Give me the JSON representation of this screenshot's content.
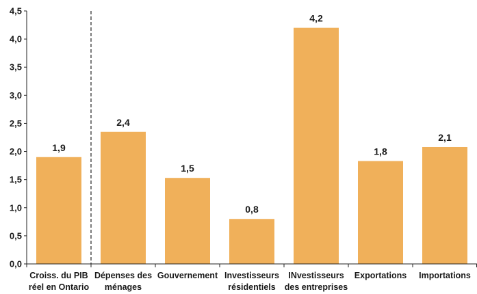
{
  "chart_data": {
    "type": "bar",
    "title": "",
    "xlabel": "",
    "ylabel": "",
    "ylim": [
      0,
      4.5
    ],
    "yticks": [
      "0,0",
      "0,5",
      "1,0",
      "1,5",
      "2,0",
      "2,5",
      "3,0",
      "3,5",
      "4,0",
      "4,5"
    ],
    "grid": false,
    "bar_color": "#F0B05A",
    "categories": [
      [
        "Croiss. du PIB",
        "réel en Ontario"
      ],
      [
        "Dépenses des",
        "ménages"
      ],
      [
        "Gouvernement"
      ],
      [
        "Investisseurs",
        "résidentiels"
      ],
      [
        "INvestisseurs",
        "des entreprises"
      ],
      [
        "Exportations"
      ],
      [
        "Importations"
      ]
    ],
    "values": [
      1.9,
      2.35,
      1.53,
      0.8,
      4.2,
      1.83,
      2.08
    ],
    "data_labels": [
      "1,9",
      "2,4",
      "1,5",
      "0,8",
      "4,2",
      "1,8",
      "2,1"
    ],
    "separator_after_category": 1
  }
}
